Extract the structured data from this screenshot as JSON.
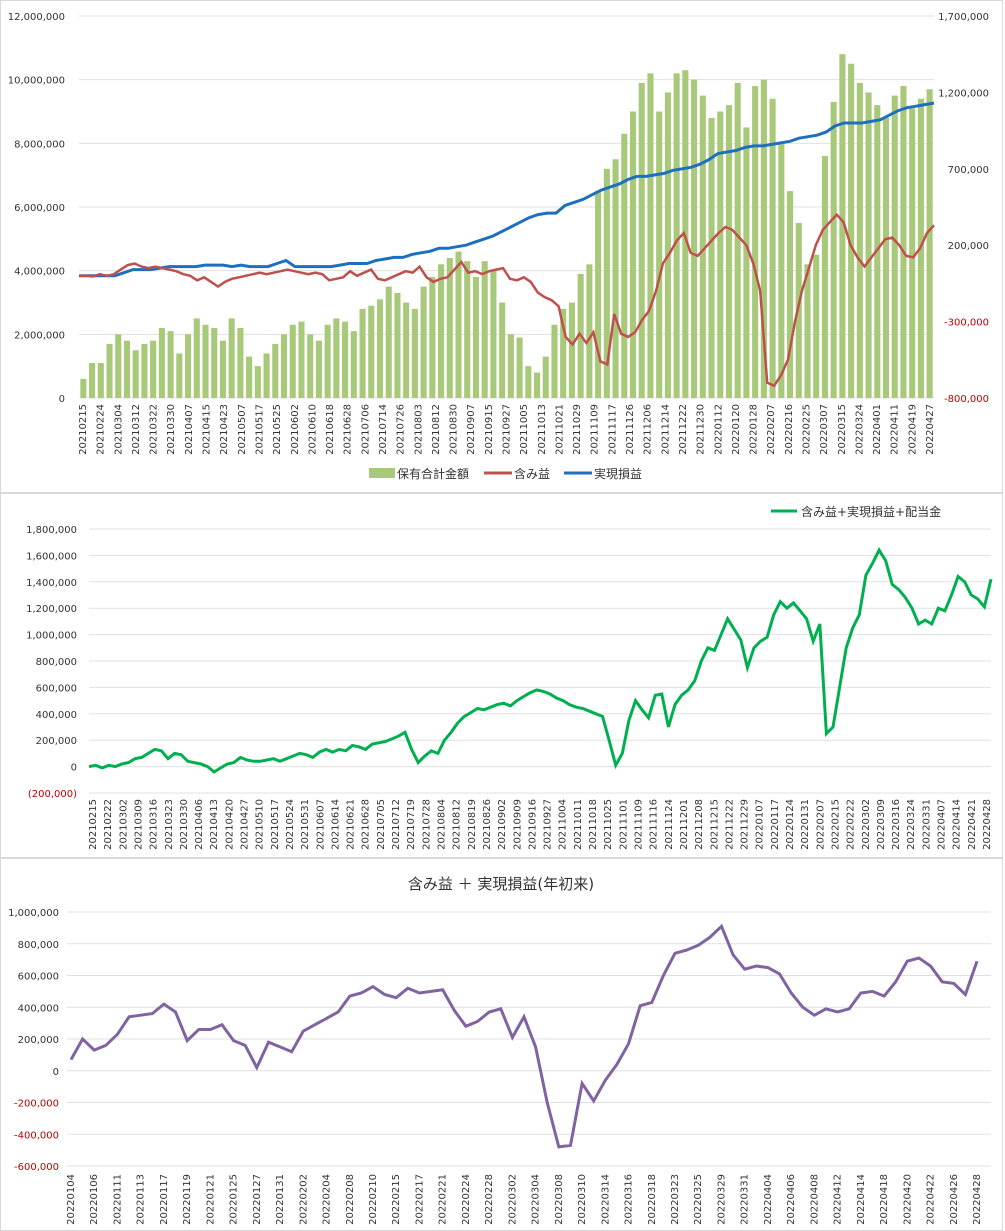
{
  "chart_data": [
    {
      "type": "bar-line-combo",
      "legend": {
        "position": "bottom",
        "items": [
          "保有合計金額",
          "含み益",
          "実現損益"
        ]
      },
      "colors": {
        "bars": "#a9c97a",
        "unrealized": "#c0504d",
        "realized": "#1f6fbf",
        "grid": "#e0e0e0",
        "neg_axis": "#c00000"
      },
      "left_axis": {
        "ylim": [
          0,
          12000000
        ],
        "ticks": [
          "0",
          "2,000,000",
          "4,000,000",
          "6,000,000",
          "8,000,000",
          "10,000,000",
          "12,000,000"
        ]
      },
      "right_axis": {
        "ylim": [
          -800000,
          1700000
        ],
        "ticks": [
          "-800,000",
          "-300,000",
          "200,000",
          "700,000",
          "1,200,000",
          "1,700,000"
        ]
      },
      "x_ticks": [
        "20210215",
        "20210224",
        "20210304",
        "20210312",
        "20210322",
        "20210330",
        "20210407",
        "20210415",
        "20210423",
        "20210507",
        "20210517",
        "20210525",
        "20210602",
        "20210610",
        "20210618",
        "20210628",
        "20210706",
        "20210714",
        "20210726",
        "20210803",
        "20210812",
        "20210830",
        "20210907",
        "20210915",
        "20210927",
        "20211005",
        "20211013",
        "20211021",
        "20211029",
        "20211109",
        "20211117",
        "20211126",
        "20211206",
        "20211214",
        "20211222",
        "20211230",
        "20220112",
        "20220120",
        "20220128",
        "20220207",
        "20220216",
        "20220225",
        "20220307",
        "20220315",
        "20220324",
        "20220401",
        "20220411",
        "20220419",
        "20220427"
      ],
      "series": [
        {
          "name": "保有合計金額",
          "axis": "left",
          "kind": "bar",
          "values": [
            600000,
            1100000,
            1100000,
            1700000,
            2000000,
            1800000,
            1500000,
            1700000,
            1800000,
            2200000,
            2100000,
            1400000,
            2000000,
            2500000,
            2300000,
            2200000,
            1800000,
            2500000,
            2200000,
            1300000,
            1000000,
            1400000,
            1700000,
            2000000,
            2300000,
            2400000,
            2000000,
            1800000,
            2300000,
            2500000,
            2400000,
            2100000,
            2800000,
            2900000,
            3100000,
            3500000,
            3300000,
            3000000,
            2800000,
            3500000,
            3800000,
            4200000,
            4400000,
            4600000,
            4300000,
            3800000,
            4300000,
            4000000,
            3000000,
            2000000,
            1900000,
            1000000,
            800000,
            1300000,
            2300000,
            2800000,
            3000000,
            3900000,
            4200000,
            6500000,
            7200000,
            7500000,
            8300000,
            9000000,
            9900000,
            10200000,
            9000000,
            9600000,
            10200000,
            10300000,
            10000000,
            9500000,
            8800000,
            9000000,
            9200000,
            9900000,
            8500000,
            9800000,
            10000000,
            9400000,
            8000000,
            6500000,
            5500000,
            4200000,
            4500000,
            7600000,
            9300000,
            10800000,
            10500000,
            9900000,
            9600000,
            9200000,
            8800000,
            9500000,
            9800000,
            9100000,
            9400000,
            9700000
          ]
        },
        {
          "name": "含み益",
          "axis": "right",
          "kind": "line",
          "values": [
            0,
            0,
            -5000,
            10000,
            0,
            10000,
            40000,
            70000,
            80000,
            60000,
            50000,
            60000,
            50000,
            40000,
            30000,
            10000,
            0,
            -30000,
            -10000,
            -40000,
            -70000,
            -40000,
            -20000,
            -10000,
            0,
            10000,
            20000,
            10000,
            20000,
            30000,
            40000,
            30000,
            20000,
            10000,
            20000,
            10000,
            -30000,
            -20000,
            -10000,
            30000,
            0,
            20000,
            40000,
            -20000,
            -30000,
            -10000,
            10000,
            30000,
            20000,
            60000,
            -10000,
            -40000,
            -20000,
            -10000,
            40000,
            90000,
            20000,
            30000,
            10000,
            30000,
            40000,
            50000,
            -20000,
            -30000,
            -10000,
            -40000,
            -110000,
            -140000,
            -160000,
            -200000,
            -400000,
            -450000,
            -380000,
            -440000,
            -370000,
            -560000,
            -580000,
            -250000,
            -380000,
            -400000,
            -370000,
            -290000,
            -230000,
            -100000,
            80000,
            150000,
            230000,
            280000,
            150000,
            130000,
            180000,
            230000,
            280000,
            320000,
            300000,
            250000,
            200000,
            80000,
            -100000,
            -700000,
            -720000,
            -650000,
            -550000,
            -300000,
            -100000,
            50000,
            200000,
            300000,
            350000,
            400000,
            350000,
            200000,
            120000,
            60000,
            120000,
            180000,
            240000,
            250000,
            200000,
            130000,
            120000,
            180000,
            280000,
            330000
          ]
        },
        {
          "name": "実現損益",
          "axis": "right",
          "kind": "line",
          "values": [
            0,
            0,
            0,
            0,
            0,
            20000,
            40000,
            40000,
            40000,
            50000,
            60000,
            60000,
            60000,
            60000,
            70000,
            70000,
            70000,
            60000,
            70000,
            60000,
            60000,
            60000,
            80000,
            100000,
            60000,
            60000,
            60000,
            60000,
            60000,
            70000,
            80000,
            80000,
            80000,
            100000,
            110000,
            120000,
            120000,
            140000,
            150000,
            160000,
            180000,
            180000,
            190000,
            200000,
            220000,
            240000,
            260000,
            290000,
            320000,
            350000,
            380000,
            400000,
            410000,
            410000,
            460000,
            480000,
            500000,
            530000,
            560000,
            580000,
            600000,
            630000,
            650000,
            650000,
            660000,
            670000,
            690000,
            700000,
            710000,
            730000,
            760000,
            800000,
            810000,
            820000,
            840000,
            850000,
            850000,
            860000,
            870000,
            880000,
            900000,
            910000,
            920000,
            940000,
            980000,
            1000000,
            1000000,
            1000000,
            1010000,
            1020000,
            1050000,
            1080000,
            1100000,
            1110000,
            1120000,
            1130000
          ]
        }
      ]
    },
    {
      "type": "line",
      "legend": {
        "position": "top-right",
        "items": [
          "含み益+実現損益+配当金"
        ]
      },
      "colors": {
        "line": "#00b050",
        "grid": "#e0e0e0",
        "neg_axis": "#c00000"
      },
      "ylim": [
        -200000,
        1800000
      ],
      "y_ticks": [
        "(200,000)",
        "0",
        "200,000",
        "400,000",
        "600,000",
        "800,000",
        "1,000,000",
        "1,200,000",
        "1,400,000",
        "1,600,000",
        "1,800,000"
      ],
      "x_ticks": [
        "20210215",
        "20210222",
        "20210302",
        "20210309",
        "20210316",
        "20210323",
        "20210330",
        "20210406",
        "20210413",
        "20210420",
        "20210427",
        "20210510",
        "20210517",
        "20210524",
        "20210531",
        "20210607",
        "20210614",
        "20210621",
        "20210628",
        "20210705",
        "20210712",
        "20210719",
        "20210728",
        "20210804",
        "20210812",
        "20210819",
        "20210826",
        "20210902",
        "20210909",
        "20210916",
        "20210927",
        "20211004",
        "20211011",
        "20211018",
        "20211025",
        "20211101",
        "20211109",
        "20211116",
        "20211124",
        "20211201",
        "20211208",
        "20211215",
        "20211222",
        "20211229",
        "20220107",
        "20220117",
        "20220124",
        "20220131",
        "20220207",
        "20220215",
        "20220222",
        "20220302",
        "20220309",
        "20220316",
        "20220324",
        "20220331",
        "20220407",
        "20220414",
        "20220421",
        "20220428"
      ],
      "series": [
        {
          "name": "含み益+実現損益+配当金",
          "values": [
            0,
            10000,
            -10000,
            10000,
            0,
            20000,
            30000,
            60000,
            70000,
            100000,
            130000,
            120000,
            60000,
            100000,
            90000,
            40000,
            30000,
            20000,
            0,
            -40000,
            -10000,
            20000,
            30000,
            70000,
            50000,
            40000,
            40000,
            50000,
            60000,
            40000,
            60000,
            80000,
            100000,
            90000,
            70000,
            110000,
            130000,
            110000,
            130000,
            120000,
            160000,
            150000,
            130000,
            170000,
            180000,
            190000,
            210000,
            230000,
            260000,
            130000,
            30000,
            80000,
            120000,
            100000,
            200000,
            260000,
            330000,
            380000,
            410000,
            440000,
            430000,
            450000,
            470000,
            480000,
            460000,
            500000,
            530000,
            560000,
            580000,
            570000,
            550000,
            520000,
            500000,
            470000,
            450000,
            440000,
            420000,
            400000,
            380000,
            200000,
            10000,
            100000,
            350000,
            500000,
            430000,
            370000,
            540000,
            550000,
            300000,
            470000,
            540000,
            580000,
            650000,
            800000,
            900000,
            880000,
            1000000,
            1120000,
            1040000,
            960000,
            750000,
            900000,
            950000,
            980000,
            1150000,
            1250000,
            1200000,
            1240000,
            1180000,
            1120000,
            950000,
            1080000,
            250000,
            300000,
            600000,
            900000,
            1050000,
            1150000,
            1450000,
            1540000,
            1640000,
            1560000,
            1380000,
            1340000,
            1280000,
            1200000,
            1080000,
            1110000,
            1080000,
            1200000,
            1180000,
            1300000,
            1440000,
            1400000,
            1300000,
            1270000,
            1210000,
            1420000
          ]
        }
      ]
    },
    {
      "type": "line",
      "title": "含み益 ＋ 実現損益(年初来)",
      "colors": {
        "line": "#8064a2",
        "grid": "#e0e0e0",
        "neg_axis": "#c00000"
      },
      "ylim": [
        -600000,
        1000000
      ],
      "y_ticks": [
        "-600,000",
        "-400,000",
        "-200,000",
        "0",
        "200,000",
        "400,000",
        "600,000",
        "800,000",
        "1,000,000"
      ],
      "x_ticks": [
        "20220104",
        "20220106",
        "20220111",
        "20220113",
        "20220117",
        "20220119",
        "20220121",
        "20220125",
        "20220127",
        "20220131",
        "20220202",
        "20220204",
        "20220208",
        "20220210",
        "20220215",
        "20220217",
        "20220221",
        "20220224",
        "20220228",
        "20220302",
        "20220304",
        "20220308",
        "20220310",
        "20220314",
        "20220316",
        "20220318",
        "20220323",
        "20220325",
        "20220329",
        "20220331",
        "20220404",
        "20220406",
        "20220408",
        "20220412",
        "20220414",
        "20220418",
        "20220420",
        "20220422",
        "20220426",
        "20220428"
      ],
      "series": [
        {
          "name": "",
          "values": [
            70000,
            200000,
            130000,
            160000,
            230000,
            340000,
            350000,
            360000,
            420000,
            370000,
            190000,
            260000,
            260000,
            290000,
            190000,
            160000,
            20000,
            180000,
            150000,
            120000,
            250000,
            290000,
            330000,
            370000,
            470000,
            490000,
            530000,
            480000,
            460000,
            520000,
            490000,
            500000,
            510000,
            380000,
            280000,
            310000,
            370000,
            390000,
            210000,
            340000,
            150000,
            -200000,
            -480000,
            -470000,
            -80000,
            -190000,
            -60000,
            40000,
            170000,
            410000,
            430000,
            600000,
            740000,
            760000,
            790000,
            840000,
            910000,
            730000,
            640000,
            660000,
            650000,
            610000,
            490000,
            400000,
            350000,
            390000,
            370000,
            390000,
            490000,
            500000,
            470000,
            560000,
            690000,
            710000,
            660000,
            560000,
            550000,
            480000,
            690000
          ]
        }
      ]
    }
  ]
}
